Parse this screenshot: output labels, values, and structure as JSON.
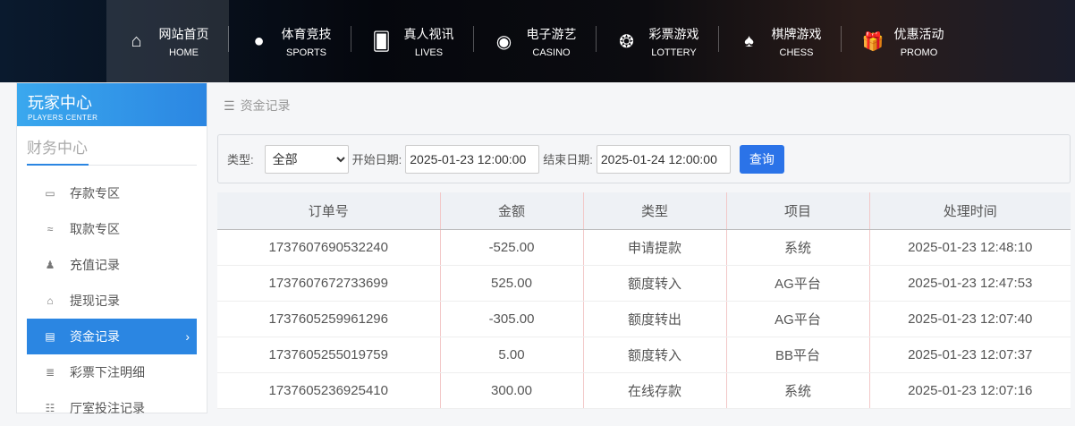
{
  "nav": [
    {
      "cn": "网站首页",
      "en": "HOME",
      "icon": "home-icon",
      "glyph": "⌂"
    },
    {
      "cn": "体育竞技",
      "en": "SPORTS",
      "icon": "ball-icon",
      "glyph": "●"
    },
    {
      "cn": "真人视讯",
      "en": "LIVES",
      "icon": "cards-icon",
      "glyph": "🂠"
    },
    {
      "cn": "电子游艺",
      "en": "CASINO",
      "icon": "roulette-icon",
      "glyph": "◉"
    },
    {
      "cn": "彩票游戏",
      "en": "LOTTERY",
      "icon": "lottery-balls-icon",
      "glyph": "❂"
    },
    {
      "cn": "棋牌游戏",
      "en": "CHESS",
      "icon": "spade-icon",
      "glyph": "♠"
    },
    {
      "cn": "优惠活动",
      "en": "PROMO",
      "icon": "gift-icon",
      "glyph": "🎁"
    }
  ],
  "sidebar": {
    "title": "玩家中心",
    "subtitle": "PLAYERS CENTER",
    "section": "财务中心",
    "items": [
      {
        "label": "存款专区",
        "icon": "card-icon",
        "glyph": "▭"
      },
      {
        "label": "取款专区",
        "icon": "hand-money-icon",
        "glyph": "≈"
      },
      {
        "label": "充值记录",
        "icon": "money-bag-icon",
        "glyph": "♟"
      },
      {
        "label": "提现记录",
        "icon": "wallet-icon",
        "glyph": "⌂"
      },
      {
        "label": "资金记录",
        "icon": "cash-icon",
        "glyph": "▤",
        "active": true
      },
      {
        "label": "彩票下注明细",
        "icon": "list-icon",
        "glyph": "≣"
      },
      {
        "label": "厅室投注记录",
        "icon": "list-bullets-icon",
        "glyph": "☷"
      }
    ]
  },
  "breadcrumb": "资金记录",
  "filter": {
    "type_label": "类型:",
    "type_value": "全部",
    "start_label": "开始日期:",
    "start_value": "2025-01-23 12:00:00",
    "end_label": "结束日期:",
    "end_value": "2025-01-24 12:00:00",
    "query": "查询"
  },
  "table": {
    "headers": [
      "订单号",
      "金额",
      "类型",
      "项目",
      "处理时间"
    ],
    "rows": [
      [
        "1737607690532240",
        "-525.00",
        "申请提款",
        "系统",
        "2025-01-23 12:48:10"
      ],
      [
        "1737607672733699",
        "525.00",
        "额度转入",
        "AG平台",
        "2025-01-23 12:47:53"
      ],
      [
        "1737605259961296",
        "-305.00",
        "额度转出",
        "AG平台",
        "2025-01-23 12:07:40"
      ],
      [
        "1737605255019759",
        "5.00",
        "额度转入",
        "BB平台",
        "2025-01-23 12:07:37"
      ],
      [
        "1737605236925410",
        "300.00",
        "在线存款",
        "系统",
        "2025-01-23 12:07:16"
      ]
    ]
  },
  "colors": {
    "accent": "#2b86e2",
    "button": "#2b73e8"
  }
}
